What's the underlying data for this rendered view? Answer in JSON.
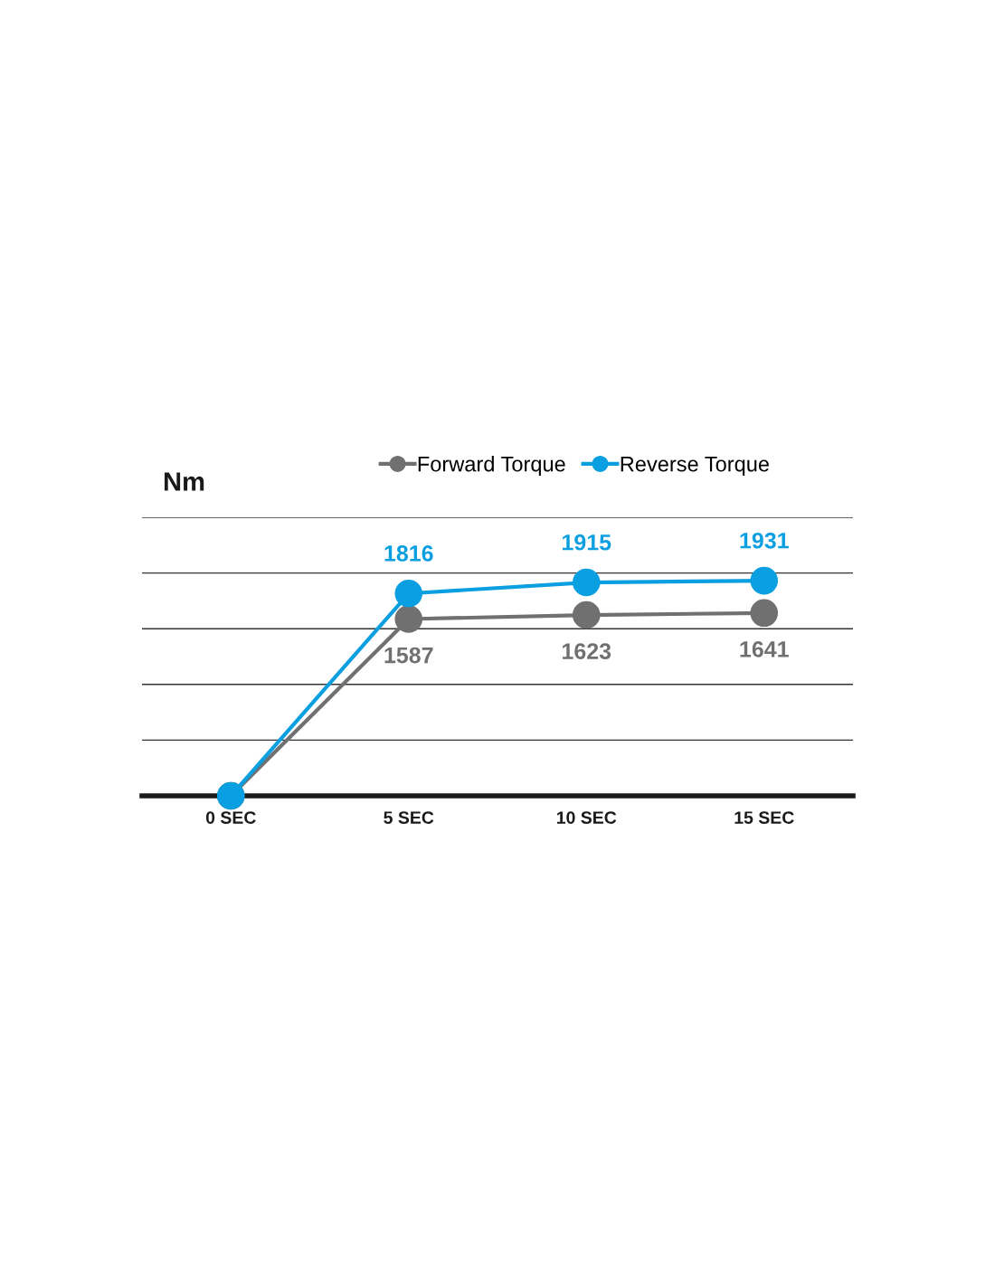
{
  "chart_data": {
    "type": "line",
    "ylabel": "Nm",
    "categories": [
      "0 SEC",
      "5 SEC",
      "10 SEC",
      "15 SEC"
    ],
    "series": [
      {
        "name": "Forward Torque",
        "color": "#707070",
        "values": [
          0,
          1587,
          1623,
          1641
        ],
        "value_labels": [
          null,
          "1587",
          "1623",
          "1641"
        ]
      },
      {
        "name": "Reverse Torque",
        "color": "#0a9fe0",
        "values": [
          0,
          1816,
          1915,
          1931
        ],
        "value_labels": [
          null,
          "1816",
          "1915",
          "1931"
        ]
      }
    ],
    "ylim": [
      0,
      2500
    ],
    "yticks": [
      {
        "value": 0,
        "label": null
      },
      {
        "value": 500,
        "label": null
      },
      {
        "value": 1000,
        "label": null
      },
      {
        "value": 1500,
        "label": null
      },
      {
        "value": 2000,
        "label": null
      },
      {
        "value": 2500,
        "label": null
      }
    ],
    "tick_labels": "x",
    "grid": "y",
    "legend": "top right",
    "marker": "circle",
    "line_style": "solid"
  }
}
